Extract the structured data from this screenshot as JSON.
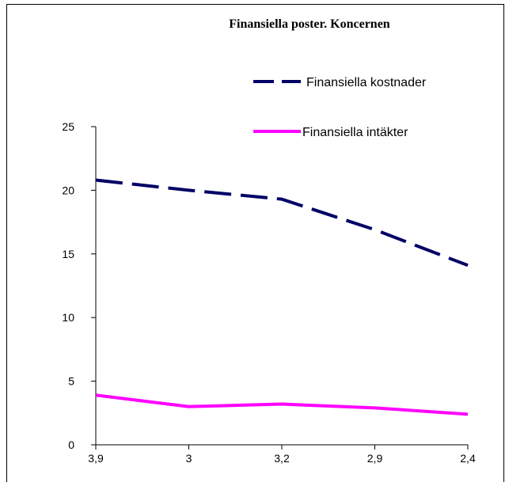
{
  "chart_data": {
    "type": "line",
    "title": "Finansiella poster. Koncernen",
    "xlabel": "",
    "ylabel": "",
    "categories": [
      "3,9",
      "3",
      "3,2",
      "2,9",
      "2,4"
    ],
    "ylim": [
      0,
      25
    ],
    "yticks": [
      "0",
      "5",
      "10",
      "15",
      "20",
      "25"
    ],
    "grid": false,
    "legend_position": "top-right",
    "series": [
      {
        "name": "Finansiella kostnader",
        "values": [
          20.8,
          20.0,
          19.3,
          16.9,
          14.1
        ],
        "color": "#000066",
        "style": "dashed"
      },
      {
        "name": "Finansiella intäkter",
        "values": [
          3.9,
          3.0,
          3.2,
          2.9,
          2.4
        ],
        "color": "#ff00ff",
        "style": "solid"
      }
    ]
  }
}
